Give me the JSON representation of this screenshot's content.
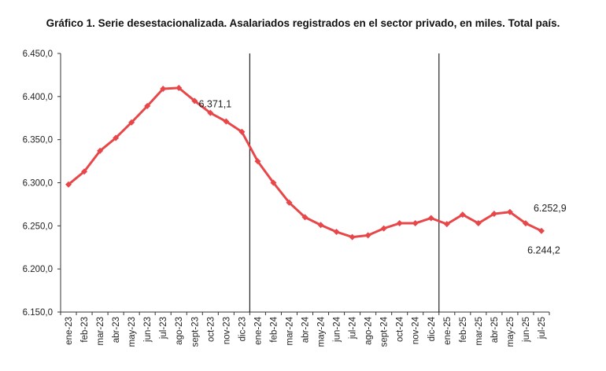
{
  "title": "Gráfico 1. Serie desestacionalizada. Asalariados registrados en el sector privado, en miles. Total país.",
  "chart_data": {
    "type": "line",
    "title": "Gráfico 1. Serie desestacionalizada. Asalariados registrados en el sector privado, en miles. Total país.",
    "xlabel": "",
    "ylabel": "",
    "ylim": [
      6150,
      6450
    ],
    "yticks": [
      6150,
      6200,
      6250,
      6300,
      6350,
      6400,
      6450
    ],
    "ytick_labels": [
      "6.150,0",
      "6.200,0",
      "6.250,0",
      "6.300,0",
      "6.350,0",
      "6.400,0",
      "6.450,0"
    ],
    "categories": [
      "ene-23",
      "feb-23",
      "mar-23",
      "abr-23",
      "may-23",
      "jun-23",
      "jul-23",
      "ago-23",
      "sept-23",
      "oct-23",
      "nov-23",
      "dic-23",
      "ene-24",
      "feb-24",
      "mar-24",
      "abr-24",
      "may-24",
      "jun-24",
      "jul-24",
      "ago-24",
      "sept-24",
      "oct-24",
      "nov-24",
      "dic-24",
      "ene-25",
      "feb-25",
      "mar-25",
      "abr-25",
      "may-25",
      "jun-25",
      "jul-25"
    ],
    "series": [
      {
        "name": "Asalariados registrados sector privado",
        "color": "#e8474a",
        "values": [
          6298,
          6313,
          6337,
          6352,
          6370,
          6389,
          6409,
          6410,
          6395,
          6381,
          6371.1,
          6359,
          6325,
          6300,
          6277,
          6260,
          6251,
          6243,
          6237,
          6239,
          6247,
          6253,
          6253,
          6259,
          6252,
          6263,
          6253,
          6264,
          6266,
          6252.9,
          6244.2
        ]
      }
    ],
    "vertical_lines_at": [
      "dic-23|ene-24",
      "dic-24|ene-25"
    ],
    "annotations": [
      {
        "category": "nov-23",
        "text": "6.371,1",
        "position": "above-left"
      },
      {
        "category": "jun-25",
        "text": "6.252,9",
        "position": "above-right"
      },
      {
        "category": "jul-25",
        "text": "6.244,2",
        "position": "below"
      }
    ],
    "grid": false,
    "legend": "none"
  }
}
